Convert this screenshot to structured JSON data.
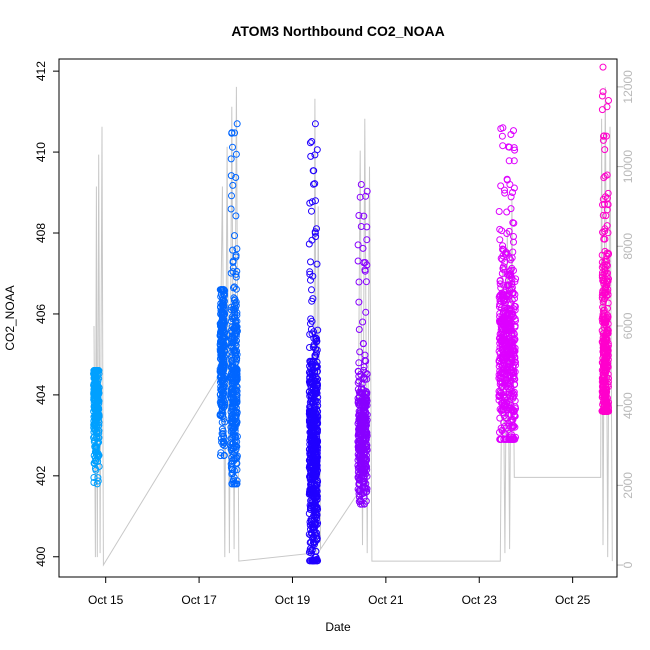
{
  "chart_data": {
    "type": "scatter",
    "title": "ATOM3 Northbound CO2_NOAA",
    "xlabel": "Date",
    "ylabel": "CO2_NOAA",
    "x_ticks": [
      "Oct 15",
      "Oct 17",
      "Oct 19",
      "Oct 21",
      "Oct 23",
      "Oct 25"
    ],
    "x_tick_days": [
      15,
      17,
      19,
      21,
      23,
      25
    ],
    "xlim_days": [
      14.0,
      25.95
    ],
    "ylim": [
      399.5,
      412.3
    ],
    "y_ticks": [
      400,
      402,
      404,
      406,
      408,
      410,
      412
    ],
    "y2_ticks": [
      0,
      2000,
      4000,
      6000,
      8000,
      10000,
      12000
    ],
    "y2lim": [
      -300,
      12700
    ],
    "colors": {
      "axis": "#000000",
      "altitude_line": "#c8c8c8",
      "right_axis": "#b8b8b8"
    },
    "series": [
      {
        "color": "#00a0ff",
        "clusters": [
          {
            "day": 14.8,
            "width": 0.12,
            "center": 403.8,
            "spread": 0.7,
            "min": 401.8,
            "max": 404.6,
            "count": 260
          }
        ]
      },
      {
        "color": "#0066ff",
        "clusters": [
          {
            "day": 17.5,
            "width": 0.1,
            "center": 405.0,
            "spread": 1.0,
            "min": 402.5,
            "max": 406.6,
            "count": 260
          },
          {
            "day": 17.75,
            "width": 0.14,
            "center": 404.3,
            "spread": 1.2,
            "min": 401.8,
            "max": 410.7,
            "count": 320
          }
        ]
      },
      {
        "color": "#2000ff",
        "clusters": [
          {
            "day": 19.45,
            "width": 0.18,
            "center": 402.6,
            "spread": 1.4,
            "min": 399.9,
            "max": 410.7,
            "count": 600
          }
        ]
      },
      {
        "color": "#8800ff",
        "clusters": [
          {
            "day": 20.5,
            "width": 0.2,
            "center": 403.0,
            "spread": 0.8,
            "min": 401.3,
            "max": 409.2,
            "count": 380
          }
        ]
      },
      {
        "color": "#dd00ff",
        "clusters": [
          {
            "day": 23.6,
            "width": 0.36,
            "center": 405.0,
            "spread": 1.2,
            "min": 402.9,
            "max": 410.6,
            "count": 520
          }
        ]
      },
      {
        "color": "#ff00cc",
        "clusters": [
          {
            "day": 25.7,
            "width": 0.14,
            "center": 404.6,
            "spread": 1.6,
            "min": 403.6,
            "max": 412.1,
            "count": 420
          }
        ]
      }
    ],
    "altitude_line": [
      [
        14.75,
        6000
      ],
      [
        14.78,
        200
      ],
      [
        14.8,
        9500
      ],
      [
        14.82,
        200
      ],
      [
        14.85,
        10300
      ],
      [
        14.88,
        300
      ],
      [
        14.92,
        11000
      ],
      [
        14.95,
        0
      ],
      [
        17.45,
        4800
      ],
      [
        17.5,
        9500
      ],
      [
        17.55,
        200
      ],
      [
        17.6,
        10500
      ],
      [
        17.65,
        300
      ],
      [
        17.7,
        11500
      ],
      [
        17.75,
        400
      ],
      [
        17.8,
        12000
      ],
      [
        17.85,
        100
      ],
      [
        19.45,
        300
      ],
      [
        19.48,
        11700
      ],
      [
        19.52,
        200
      ],
      [
        19.55,
        9000
      ],
      [
        19.6,
        400
      ],
      [
        20.4,
        1800
      ],
      [
        20.45,
        10400
      ],
      [
        20.5,
        500
      ],
      [
        20.55,
        11200
      ],
      [
        20.6,
        300
      ],
      [
        20.65,
        10000
      ],
      [
        20.7,
        100
      ],
      [
        23.45,
        100
      ],
      [
        23.5,
        7500
      ],
      [
        23.55,
        300
      ],
      [
        23.6,
        8400
      ],
      [
        23.65,
        400
      ],
      [
        23.7,
        9200
      ],
      [
        23.75,
        2200
      ],
      [
        25.6,
        2200
      ],
      [
        25.62,
        11200
      ],
      [
        25.65,
        500
      ],
      [
        25.7,
        12000
      ],
      [
        25.75,
        200
      ],
      [
        25.8,
        11000
      ],
      [
        25.85,
        100
      ]
    ]
  }
}
